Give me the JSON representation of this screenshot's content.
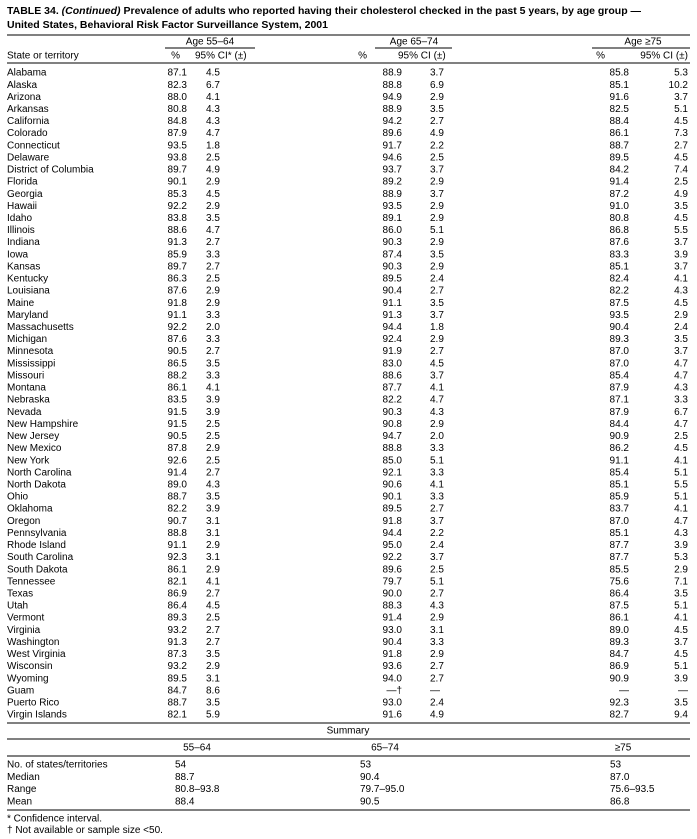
{
  "header": {
    "label": "TABLE 34.",
    "continued": "(Continued)",
    "title": "Prevalence of adults who reported having their cholesterol checked in the past 5 years, by age group —",
    "subtitle": "United States, Behavioral Risk Factor Surveillance System, 2001"
  },
  "table": {
    "group_headers": [
      "Age 55–64",
      "Age 65–74",
      "Age ≥75"
    ],
    "columns": [
      "State or territory",
      "%",
      "95% CI* (±)",
      "%",
      "95% CI (±)",
      "%",
      "95% CI (±)"
    ],
    "rows": [
      [
        "Alabama",
        "87.1",
        "4.5",
        "88.9",
        "3.7",
        "85.8",
        "5.3"
      ],
      [
        "Alaska",
        "82.3",
        "6.7",
        "88.8",
        "6.9",
        "85.1",
        "10.2"
      ],
      [
        "Arizona",
        "88.0",
        "4.1",
        "94.9",
        "2.9",
        "91.6",
        "3.7"
      ],
      [
        "Arkansas",
        "80.8",
        "4.3",
        "88.9",
        "3.5",
        "82.5",
        "5.1"
      ],
      [
        "California",
        "84.8",
        "4.3",
        "94.2",
        "2.7",
        "88.4",
        "4.5"
      ],
      [
        "Colorado",
        "87.9",
        "4.7",
        "89.6",
        "4.9",
        "86.1",
        "7.3"
      ],
      [
        "Connecticut",
        "93.5",
        "1.8",
        "91.7",
        "2.2",
        "88.7",
        "2.7"
      ],
      [
        "Delaware",
        "93.8",
        "2.5",
        "94.6",
        "2.5",
        "89.5",
        "4.5"
      ],
      [
        "District of Columbia",
        "89.7",
        "4.9",
        "93.7",
        "3.7",
        "84.2",
        "7.4"
      ],
      [
        "Florida",
        "90.1",
        "2.9",
        "89.2",
        "2.9",
        "91.4",
        "2.5"
      ],
      [
        "Georgia",
        "85.3",
        "4.5",
        "88.9",
        "3.7",
        "87.2",
        "4.9"
      ],
      [
        "Hawaii",
        "92.2",
        "2.9",
        "93.5",
        "2.9",
        "91.0",
        "3.5"
      ],
      [
        "Idaho",
        "83.8",
        "3.5",
        "89.1",
        "2.9",
        "80.8",
        "4.5"
      ],
      [
        "Illinois",
        "88.6",
        "4.7",
        "86.0",
        "5.1",
        "86.8",
        "5.5"
      ],
      [
        "Indiana",
        "91.3",
        "2.7",
        "90.3",
        "2.9",
        "87.6",
        "3.7"
      ],
      [
        "Iowa",
        "85.9",
        "3.3",
        "87.4",
        "3.5",
        "83.3",
        "3.9"
      ],
      [
        "Kansas",
        "89.7",
        "2.7",
        "90.3",
        "2.9",
        "85.1",
        "3.7"
      ],
      [
        "Kentucky",
        "86.3",
        "2.5",
        "89.5",
        "2.4",
        "82.4",
        "4.1"
      ],
      [
        "Louisiana",
        "87.6",
        "2.9",
        "90.4",
        "2.7",
        "82.2",
        "4.3"
      ],
      [
        "Maine",
        "91.8",
        "2.9",
        "91.1",
        "3.5",
        "87.5",
        "4.5"
      ],
      [
        "Maryland",
        "91.1",
        "3.3",
        "91.3",
        "3.7",
        "93.5",
        "2.9"
      ],
      [
        "Massachusetts",
        "92.2",
        "2.0",
        "94.4",
        "1.8",
        "90.4",
        "2.4"
      ],
      [
        "Michigan",
        "87.6",
        "3.3",
        "92.4",
        "2.9",
        "89.3",
        "3.5"
      ],
      [
        "Minnesota",
        "90.5",
        "2.7",
        "91.9",
        "2.7",
        "87.0",
        "3.7"
      ],
      [
        "Mississippi",
        "86.5",
        "3.5",
        "83.0",
        "4.5",
        "87.0",
        "4.7"
      ],
      [
        "Missouri",
        "88.2",
        "3.3",
        "88.6",
        "3.7",
        "85.4",
        "4.7"
      ],
      [
        "Montana",
        "86.1",
        "4.1",
        "87.7",
        "4.1",
        "87.9",
        "4.3"
      ],
      [
        "Nebraska",
        "83.5",
        "3.9",
        "82.2",
        "4.7",
        "87.1",
        "3.3"
      ],
      [
        "Nevada",
        "91.5",
        "3.9",
        "90.3",
        "4.3",
        "87.9",
        "6.7"
      ],
      [
        "New Hampshire",
        "91.5",
        "2.5",
        "90.8",
        "2.9",
        "84.4",
        "4.7"
      ],
      [
        "New Jersey",
        "90.5",
        "2.5",
        "94.7",
        "2.0",
        "90.9",
        "2.5"
      ],
      [
        "New Mexico",
        "87.8",
        "2.9",
        "88.8",
        "3.3",
        "86.2",
        "4.5"
      ],
      [
        "New York",
        "92.6",
        "2.5",
        "85.0",
        "5.1",
        "91.1",
        "4.1"
      ],
      [
        "North Carolina",
        "91.4",
        "2.7",
        "92.1",
        "3.3",
        "85.4",
        "5.1"
      ],
      [
        "North Dakota",
        "89.0",
        "4.3",
        "90.6",
        "4.1",
        "85.1",
        "5.5"
      ],
      [
        "Ohio",
        "88.7",
        "3.5",
        "90.1",
        "3.3",
        "85.9",
        "5.1"
      ],
      [
        "Oklahoma",
        "82.2",
        "3.9",
        "89.5",
        "2.7",
        "83.7",
        "4.1"
      ],
      [
        "Oregon",
        "90.7",
        "3.1",
        "91.8",
        "3.7",
        "87.0",
        "4.7"
      ],
      [
        "Pennsylvania",
        "88.8",
        "3.1",
        "94.4",
        "2.2",
        "85.1",
        "4.3"
      ],
      [
        "Rhode Island",
        "91.1",
        "2.9",
        "95.0",
        "2.4",
        "87.7",
        "3.9"
      ],
      [
        "South Carolina",
        "92.3",
        "3.1",
        "92.2",
        "3.7",
        "87.7",
        "5.3"
      ],
      [
        "South Dakota",
        "86.1",
        "2.9",
        "89.6",
        "2.5",
        "85.5",
        "2.9"
      ],
      [
        "Tennessee",
        "82.1",
        "4.1",
        "79.7",
        "5.1",
        "75.6",
        "7.1"
      ],
      [
        "Texas",
        "86.9",
        "2.7",
        "90.0",
        "2.7",
        "86.4",
        "3.5"
      ],
      [
        "Utah",
        "86.4",
        "4.5",
        "88.3",
        "4.3",
        "87.5",
        "5.1"
      ],
      [
        "Vermont",
        "89.3",
        "2.5",
        "91.4",
        "2.9",
        "86.1",
        "4.1"
      ],
      [
        "Virginia",
        "93.2",
        "2.7",
        "93.0",
        "3.1",
        "89.0",
        "4.5"
      ],
      [
        "Washington",
        "91.3",
        "2.7",
        "90.4",
        "3.3",
        "89.3",
        "3.7"
      ],
      [
        "West Virginia",
        "87.3",
        "3.5",
        "91.8",
        "2.9",
        "84.7",
        "4.5"
      ],
      [
        "Wisconsin",
        "93.2",
        "2.9",
        "93.6",
        "2.7",
        "86.9",
        "5.1"
      ],
      [
        "Wyoming",
        "89.5",
        "3.1",
        "94.0",
        "2.7",
        "90.9",
        "3.9"
      ],
      [
        "Guam",
        "84.7",
        "8.6",
        "—†",
        "—",
        "—",
        "—"
      ],
      [
        "Puerto Rico",
        "88.7",
        "3.5",
        "93.0",
        "2.4",
        "92.3",
        "3.5"
      ],
      [
        "Virgin Islands",
        "82.1",
        "5.9",
        "91.6",
        "4.9",
        "82.7",
        "9.4"
      ]
    ]
  },
  "summary": {
    "title": "Summary",
    "columns": [
      "55–64",
      "65–74",
      "≥75"
    ],
    "rows": [
      [
        "No. of states/territories",
        "54",
        "53",
        "53"
      ],
      [
        "Median",
        "88.7",
        "90.4",
        "87.0"
      ],
      [
        "Range",
        "80.8–93.8",
        "79.7–95.0",
        "75.6–93.5"
      ],
      [
        "Mean",
        "88.4",
        "90.5",
        "86.8"
      ]
    ]
  },
  "footnotes": [
    "* Confidence interval.",
    "† Not available or sample size <50."
  ]
}
